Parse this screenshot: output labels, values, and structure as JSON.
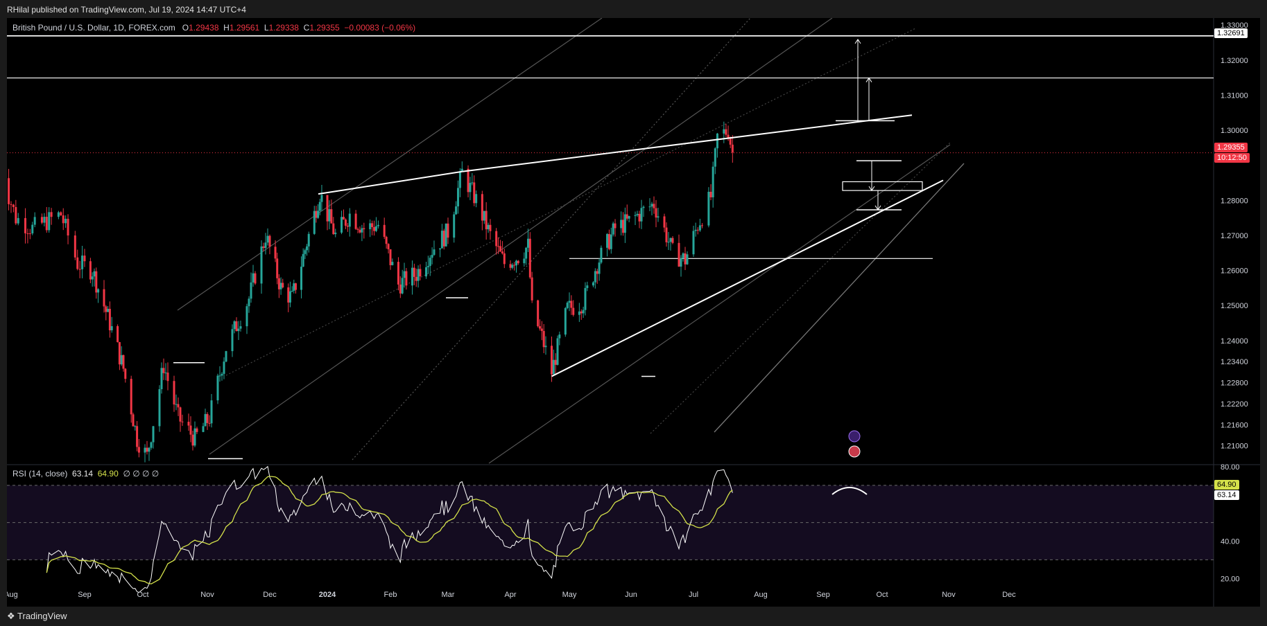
{
  "header": {
    "publisher": "RHilal published on TradingView.com, Jul 19, 2024 14:47 UTC+4"
  },
  "legend": {
    "symbol": "British Pound / U.S. Dollar, 1D, FOREX.com",
    "open_label": "O",
    "open": "1.29438",
    "high_label": "H",
    "high": "1.29561",
    "low_label": "L",
    "low": "1.29338",
    "close_label": "C",
    "close": "1.29355",
    "change": "−0.00083 (−0.06%)"
  },
  "rsi_legend": {
    "title": "RSI (14, close)",
    "rsi": "63.14",
    "ma": "64.90",
    "extras": "∅ ∅ ∅ ∅"
  },
  "price_labels": {
    "level": "1.32691",
    "last": "1.29355",
    "countdown": "10:12:50",
    "rsi_ma": "64.90",
    "rsi": "63.14"
  },
  "footer": {
    "logo": "TradingView"
  },
  "colors": {
    "up": "#26a69a",
    "down": "#f23645",
    "rsi_line": "#ffffff",
    "rsi_ma": "#d4e14a",
    "background": "#000000"
  },
  "chart_data": {
    "type": "candlestick",
    "symbol": "GBPUSD",
    "timeframe": "1D",
    "ylim": [
      1.205,
      1.332
    ],
    "price_ticks": [
      "1.33000",
      "1.32000",
      "1.31000",
      "1.30000",
      "1.28000",
      "1.27000",
      "1.26000",
      "1.25000",
      "1.24000",
      "1.23400",
      "1.22800",
      "1.22200",
      "1.21600",
      "1.21000"
    ],
    "price_tick_values": [
      1.33,
      1.32,
      1.31,
      1.3,
      1.28,
      1.27,
      1.26,
      1.25,
      1.24,
      1.234,
      1.228,
      1.222,
      1.216,
      1.21
    ],
    "x_ticks": [
      "Aug",
      "Sep",
      "Oct",
      "Nov",
      "Dec",
      "2024",
      "Feb",
      "Mar",
      "Apr",
      "May",
      "Jun",
      "Jul",
      "Aug",
      "Sep",
      "Oct",
      "Nov",
      "Dec"
    ],
    "x_tick_dates": [
      "2023-08-01",
      "2023-09-01",
      "2023-10-01",
      "2023-11-01",
      "2023-12-01",
      "2024-01-01",
      "2024-02-01",
      "2024-03-01",
      "2024-04-01",
      "2024-05-01",
      "2024-06-01",
      "2024-07-01",
      "2024-08-01",
      "2024-09-01",
      "2024-10-01",
      "2024-11-01",
      "2024-12-01"
    ],
    "price_path": [
      [
        "2023-07-27",
        1.29
      ],
      [
        "2023-08-03",
        1.275
      ],
      [
        "2023-08-10",
        1.272
      ],
      [
        "2023-08-22",
        1.276
      ],
      [
        "2023-08-29",
        1.262
      ],
      [
        "2023-09-05",
        1.26
      ],
      [
        "2023-09-14",
        1.245
      ],
      [
        "2023-09-21",
        1.232
      ],
      [
        "2023-09-28",
        1.212
      ],
      [
        "2023-10-03",
        1.207
      ],
      [
        "2023-10-11",
        1.233
      ],
      [
        "2023-10-18",
        1.218
      ],
      [
        "2023-10-26",
        1.212
      ],
      [
        "2023-11-02",
        1.218
      ],
      [
        "2023-11-10",
        1.238
      ],
      [
        "2023-11-21",
        1.252
      ],
      [
        "2023-11-29",
        1.27
      ],
      [
        "2023-12-07",
        1.255
      ],
      [
        "2023-12-13",
        1.252
      ],
      [
        "2023-12-28",
        1.282
      ],
      [
        "2024-01-05",
        1.27
      ],
      [
        "2024-01-12",
        1.276
      ],
      [
        "2024-01-19",
        1.272
      ],
      [
        "2024-01-26",
        1.273
      ],
      [
        "2024-02-05",
        1.256
      ],
      [
        "2024-02-14",
        1.259
      ],
      [
        "2024-02-22",
        1.266
      ],
      [
        "2024-03-01",
        1.271
      ],
      [
        "2024-03-08",
        1.288
      ],
      [
        "2024-03-15",
        1.28
      ],
      [
        "2024-03-22",
        1.27
      ],
      [
        "2024-03-29",
        1.262
      ],
      [
        "2024-04-05",
        1.264
      ],
      [
        "2024-04-10",
        1.267
      ],
      [
        "2024-04-12",
        1.249
      ],
      [
        "2024-04-17",
        1.241
      ],
      [
        "2024-04-22",
        1.231
      ],
      [
        "2024-04-30",
        1.249
      ],
      [
        "2024-05-08",
        1.251
      ],
      [
        "2024-05-15",
        1.262
      ],
      [
        "2024-05-24",
        1.272
      ],
      [
        "2024-05-31",
        1.274
      ],
      [
        "2024-06-07",
        1.277
      ],
      [
        "2024-06-12",
        1.279
      ],
      [
        "2024-06-18",
        1.27
      ],
      [
        "2024-06-21",
        1.265
      ],
      [
        "2024-06-27",
        1.263
      ],
      [
        "2024-07-03",
        1.273
      ],
      [
        "2024-07-09",
        1.281
      ],
      [
        "2024-07-12",
        1.298
      ],
      [
        "2024-07-17",
        1.3
      ],
      [
        "2024-07-19",
        1.29355
      ]
    ],
    "rsi": {
      "name": "RSI (14, close)",
      "length": 14,
      "last": 63.14,
      "ma_last": 64.9,
      "levels": [
        70,
        50,
        30
      ],
      "ylim": [
        16,
        80
      ],
      "ticks": [
        "80.00",
        "40.00",
        "20.00"
      ],
      "tick_values": [
        80,
        40,
        20
      ]
    },
    "annotations": {
      "horizontal_levels": [
        1.32691,
        1.3149,
        1.2634
      ],
      "tops": [
        "2023-12-28",
        "2024-03-08",
        "2024-07-17"
      ],
      "ascending_support_from": [
        "2024-04-22",
        1.2298
      ]
    }
  }
}
